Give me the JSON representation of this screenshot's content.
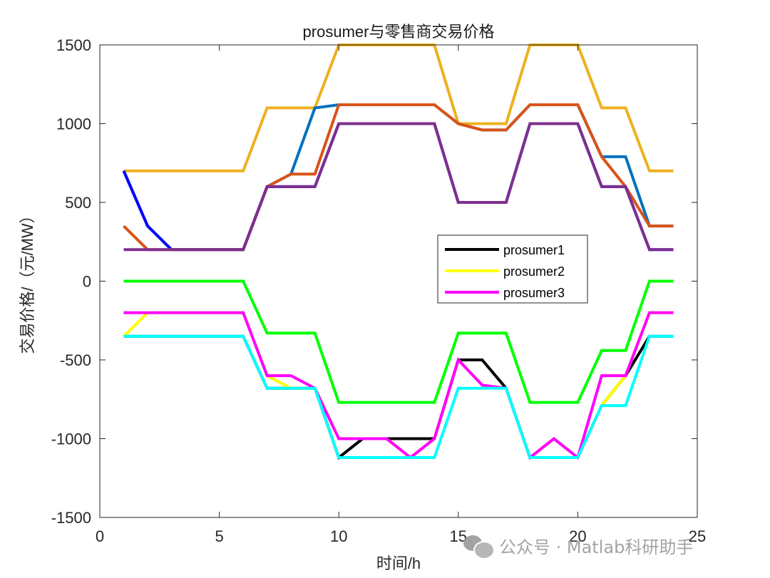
{
  "chart_data": {
    "type": "line",
    "title": "prosumer与零售商交易价格",
    "xlabel": "时间/h",
    "ylabel": "交易价格/（元/MW）",
    "xlim": [
      0,
      25
    ],
    "ylim": [
      -1500,
      1500
    ],
    "xticks": [
      0,
      5,
      10,
      15,
      20,
      25
    ],
    "yticks": [
      -1500,
      -1000,
      -500,
      0,
      500,
      1000,
      1500
    ],
    "grid": false,
    "legend_position": "inside-center-right",
    "x": [
      1,
      2,
      3,
      4,
      5,
      6,
      7,
      8,
      9,
      10,
      11,
      12,
      13,
      14,
      15,
      16,
      17,
      18,
      19,
      20,
      21,
      22,
      23,
      24
    ],
    "series": [
      {
        "name": "retailer-sell-price",
        "in_legend": false,
        "color": "#EDB120",
        "values": [
          700,
          700,
          700,
          700,
          700,
          700,
          1100,
          1100,
          1100,
          1500,
          1500,
          1500,
          1500,
          1500,
          1000,
          1000,
          1000,
          1500,
          1500,
          1500,
          1100,
          1100,
          700,
          700
        ]
      },
      {
        "name": "upper-blue",
        "in_legend": false,
        "color": "#0072BD",
        "values": [
          700,
          350,
          200,
          200,
          200,
          200,
          600,
          680,
          1100,
          1120,
          1120,
          1120,
          1120,
          1120,
          1000,
          960,
          960,
          1120,
          1120,
          1120,
          790,
          790,
          350,
          350
        ]
      },
      {
        "name": "upper-pure-blue",
        "in_legend": false,
        "color": "#0000FF",
        "values": [
          700,
          350,
          200,
          200,
          200,
          200,
          600,
          600,
          600,
          1000,
          1000,
          1000,
          1000,
          1000,
          500,
          500,
          500,
          1000,
          1000,
          1000,
          600,
          600,
          200,
          200
        ]
      },
      {
        "name": "upper-orange",
        "in_legend": false,
        "color": "#D95319",
        "values": [
          350,
          200,
          200,
          200,
          200,
          200,
          600,
          680,
          680,
          1120,
          1120,
          1120,
          1120,
          1120,
          1000,
          960,
          960,
          1120,
          1120,
          1120,
          790,
          600,
          350,
          350
        ]
      },
      {
        "name": "upper-purple",
        "in_legend": false,
        "color": "#7E2F8E",
        "values": [
          200,
          200,
          200,
          200,
          200,
          200,
          600,
          600,
          600,
          1000,
          1000,
          1000,
          1000,
          1000,
          500,
          500,
          500,
          1000,
          1000,
          1000,
          600,
          600,
          200,
          200
        ]
      },
      {
        "name": "prosumer1",
        "in_legend": true,
        "color": "#000000",
        "values": [
          -350,
          -350,
          -350,
          -350,
          -350,
          -350,
          -680,
          -680,
          -680,
          -1120,
          -1000,
          -1000,
          -1000,
          -1000,
          -500,
          -500,
          -680,
          -1120,
          -1120,
          -1120,
          -790,
          -600,
          -350,
          -350
        ]
      },
      {
        "name": "prosumer2",
        "in_legend": true,
        "color": "#FFFF00",
        "values": [
          -350,
          -200,
          -200,
          -200,
          -200,
          -200,
          -600,
          -680,
          -680,
          -1000,
          -1000,
          -1000,
          -1120,
          -1000,
          -500,
          -660,
          -680,
          -1120,
          -1000,
          -1120,
          -790,
          -600,
          -200,
          -200
        ]
      },
      {
        "name": "prosumer3",
        "in_legend": true,
        "color": "#FF00FF",
        "values": [
          -200,
          -200,
          -200,
          -200,
          -200,
          -200,
          -600,
          -600,
          -680,
          -1000,
          -1000,
          -1000,
          -1120,
          -1000,
          -500,
          -660,
          -680,
          -1120,
          -1000,
          -1120,
          -600,
          -600,
          -200,
          -200
        ]
      },
      {
        "name": "lower-green",
        "in_legend": false,
        "color": "#00FF00",
        "values": [
          0,
          0,
          0,
          0,
          0,
          0,
          -330,
          -330,
          -330,
          -770,
          -770,
          -770,
          -770,
          -770,
          -330,
          -330,
          -330,
          -770,
          -770,
          -770,
          -440,
          -440,
          0,
          0
        ]
      },
      {
        "name": "lower-cyan",
        "in_legend": false,
        "color": "#00FFFF",
        "values": [
          -350,
          -350,
          -350,
          -350,
          -350,
          -350,
          -680,
          -680,
          -680,
          -1120,
          -1120,
          -1120,
          -1120,
          -1120,
          -680,
          -680,
          -680,
          -1120,
          -1120,
          -1120,
          -790,
          -790,
          -350,
          -350
        ]
      }
    ],
    "legend": [
      {
        "label": "prosumer1",
        "color": "#000000"
      },
      {
        "label": "prosumer2",
        "color": "#FFFF00"
      },
      {
        "label": "prosumer3",
        "color": "#FF00FF"
      }
    ]
  },
  "watermark": {
    "text": "公众号 · Matlab科研助手"
  }
}
